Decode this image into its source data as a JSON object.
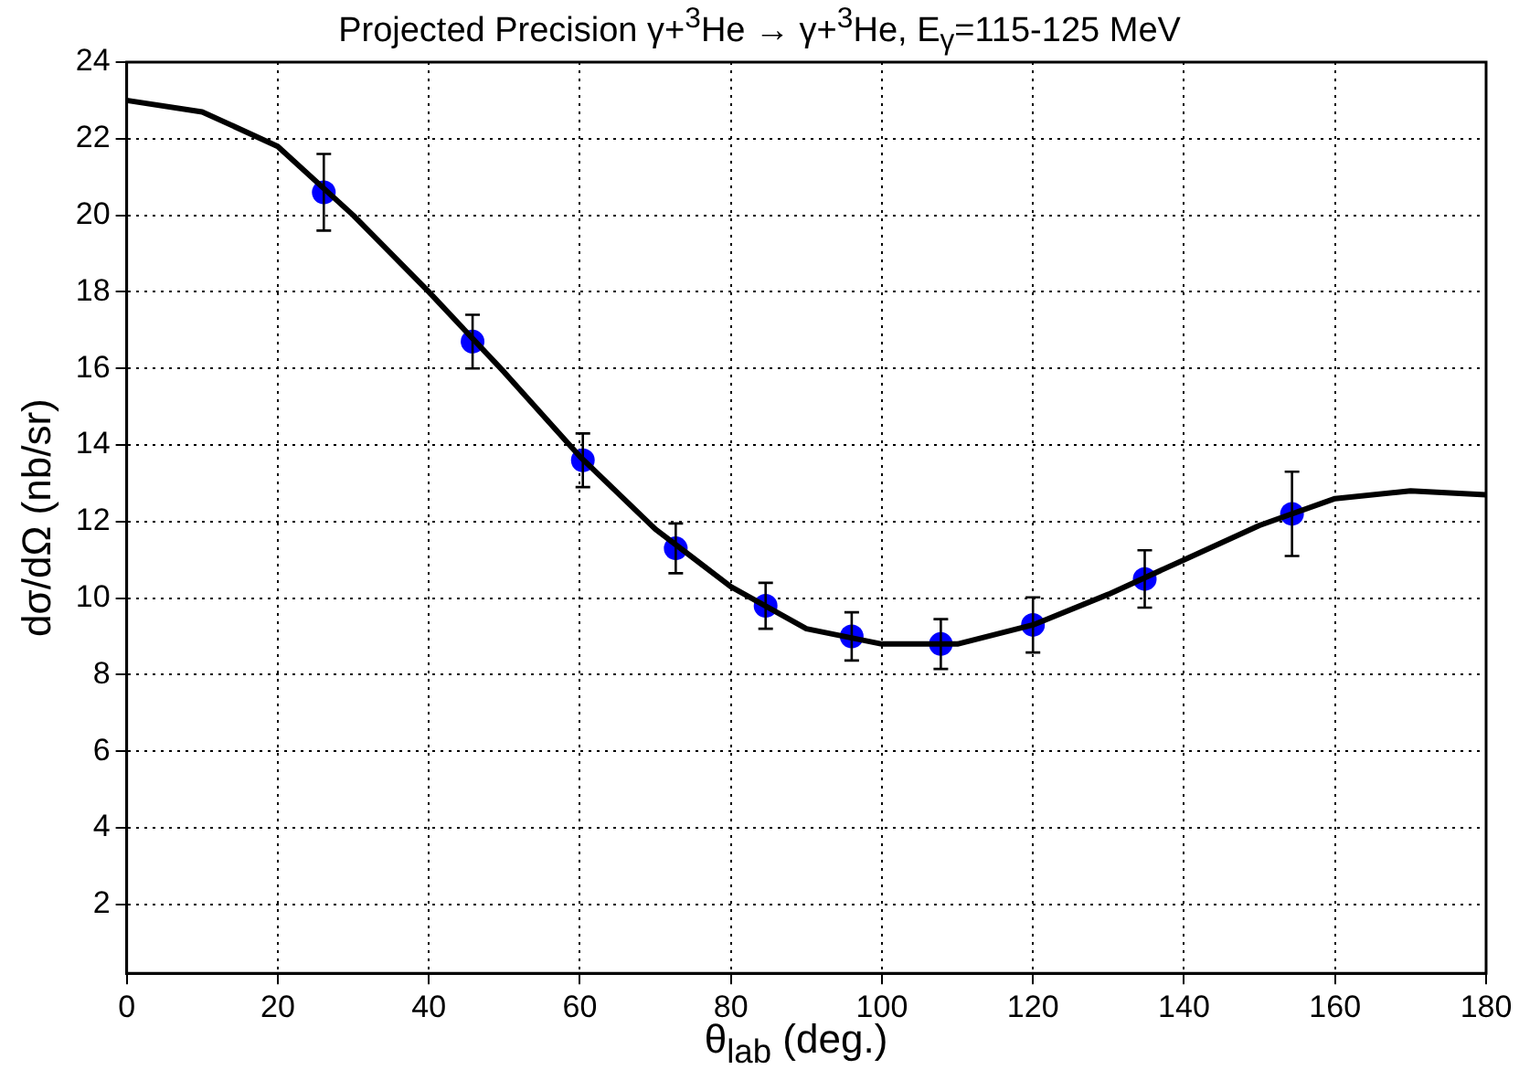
{
  "chart_data": {
    "type": "scatter",
    "title": "Projected Precision γ+$^{3}$He → γ+$^{3}$He, E$_{γ}$=115-125 MeV",
    "xlabel": "θ$_{lab}$ (deg.)",
    "ylabel": "dσ/dΩ (nb/sr)",
    "xlim": [
      0,
      180
    ],
    "xticks": [
      0,
      20,
      40,
      60,
      80,
      100,
      120,
      140,
      160,
      180
    ],
    "ylim": [
      0.2,
      24
    ],
    "yticks": [
      2,
      4,
      6,
      8,
      10,
      12,
      14,
      16,
      18,
      20,
      22,
      24
    ],
    "grid": true,
    "legend": false,
    "marker": "circle",
    "series": [
      {
        "type": "line",
        "color": "#000000",
        "marker": "none",
        "x": [
          0,
          10,
          20,
          30,
          40,
          50,
          60,
          70,
          80,
          90,
          100,
          110,
          120,
          130,
          140,
          150,
          160,
          170,
          180
        ],
        "values": [
          23.0,
          22.7,
          21.8,
          20.0,
          18.0,
          15.9,
          13.7,
          11.8,
          10.3,
          9.2,
          8.8,
          8.8,
          9.3,
          10.1,
          11.0,
          11.9,
          12.6,
          12.8,
          12.7
        ]
      },
      {
        "color": "#0000ff",
        "x": [
          26.1,
          45.8,
          60.4,
          72.7,
          84.6,
          96.0,
          107.8,
          120.0,
          134.8,
          154.3
        ],
        "values": [
          20.6,
          16.7,
          13.6,
          11.3,
          9.8,
          9.0,
          8.8,
          9.3,
          10.5,
          12.2
        ],
        "errors": [
          1.0,
          0.7,
          0.7,
          0.65,
          0.6,
          0.63,
          0.65,
          0.72,
          0.75,
          1.1
        ]
      }
    ]
  }
}
